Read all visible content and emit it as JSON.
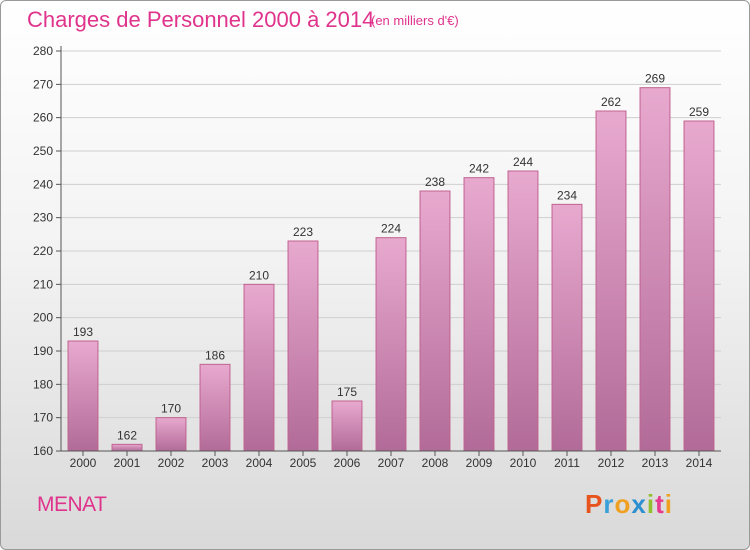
{
  "header": {
    "title": "Charges de Personnel 2000 à 2014",
    "subtitle": "(en milliers d'€)"
  },
  "footer": {
    "commune": "MENAT",
    "logo": "Proxiti",
    "logo_colors": [
      "#e8541e",
      "#3aa0d8",
      "#f0a020",
      "#2e8fd0",
      "#90c030",
      "#e53a8e",
      "#f0a020"
    ]
  },
  "colors": {
    "bar_fill_top": "#e8a9cf",
    "bar_fill_bottom": "#b26b98",
    "bar_stroke": "#c0628f",
    "text": "#333333",
    "title": "#e0338c"
  },
  "chart_data": {
    "type": "bar",
    "title": "Charges de Personnel 2000 à 2014",
    "subtitle": "(en milliers d'€)",
    "categories": [
      "2000",
      "2001",
      "2002",
      "2003",
      "2004",
      "2005",
      "2006",
      "2007",
      "2008",
      "2009",
      "2010",
      "2011",
      "2012",
      "2013",
      "2014"
    ],
    "values": [
      193,
      162,
      170,
      186,
      210,
      223,
      175,
      224,
      238,
      242,
      244,
      234,
      262,
      269,
      259
    ],
    "ylim": [
      160,
      280
    ],
    "yticks": [
      160,
      170,
      180,
      190,
      200,
      210,
      220,
      230,
      240,
      250,
      260,
      270,
      280
    ],
    "grid": true,
    "legend": "none"
  }
}
